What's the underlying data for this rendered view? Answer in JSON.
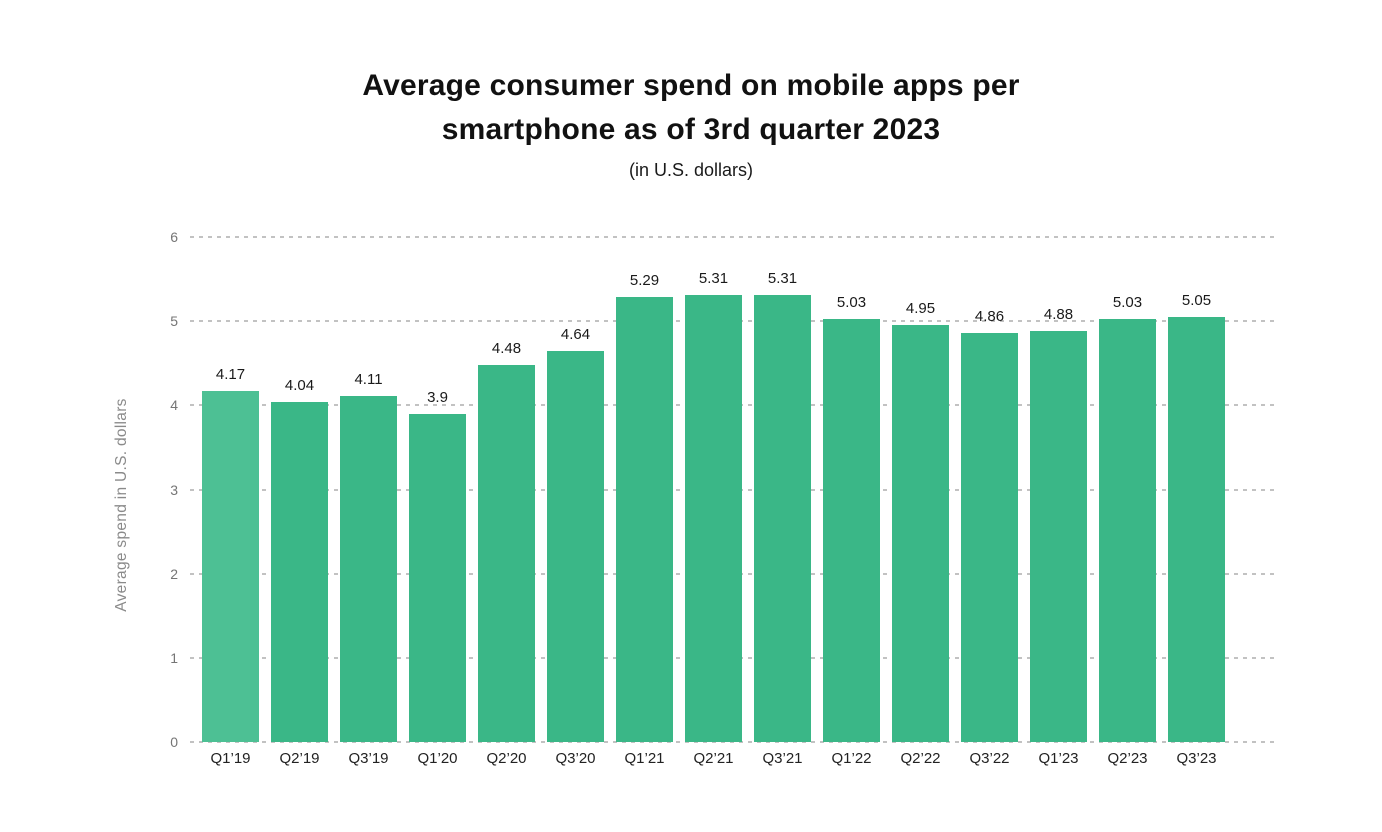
{
  "header": {
    "title": "Average consumer spend on mobile apps per smartphone as of 3rd quarter 2023",
    "subtitle": "(in U.S. dollars)"
  },
  "chart_data": {
    "type": "bar",
    "title": "Average consumer spend on mobile apps per smartphone as of 3rd quarter 2023",
    "subtitle": "(in U.S. dollars)",
    "categories": [
      "Q1’19",
      "Q2’19",
      "Q3’19",
      "Q1’20",
      "Q2’20",
      "Q3’20",
      "Q1’21",
      "Q2’21",
      "Q3’21",
      "Q1’22",
      "Q2’22",
      "Q3’22",
      "Q1’23",
      "Q2’23",
      "Q3’23"
    ],
    "values": [
      4.17,
      4.04,
      4.11,
      3.9,
      4.48,
      4.64,
      5.29,
      5.31,
      5.31,
      5.03,
      4.95,
      4.86,
      4.88,
      5.03,
      5.05
    ],
    "values_text": [
      "4.17",
      "4.04",
      "4.11",
      "3.9",
      "4.48",
      "4.64",
      "5.29",
      "5.31",
      "5.31",
      "5.03",
      "4.95",
      "4.86",
      "4.88",
      "5.03",
      "5.05"
    ],
    "xlabel": "",
    "ylabel": "Average spend in U.S. dollars",
    "ylim": [
      0,
      6
    ],
    "yticks": [
      0,
      1,
      2,
      3,
      4,
      5,
      6
    ],
    "grid": "horizontal dashed",
    "legend": "none",
    "bar_color": "#3ab787",
    "first_bar_color": "#4dc094",
    "gridline_color": "#c2c2c2",
    "value_label_color": "#1a1a1a",
    "tick_label_color": "#757575",
    "axis_title_color": "#8a8a8a"
  }
}
